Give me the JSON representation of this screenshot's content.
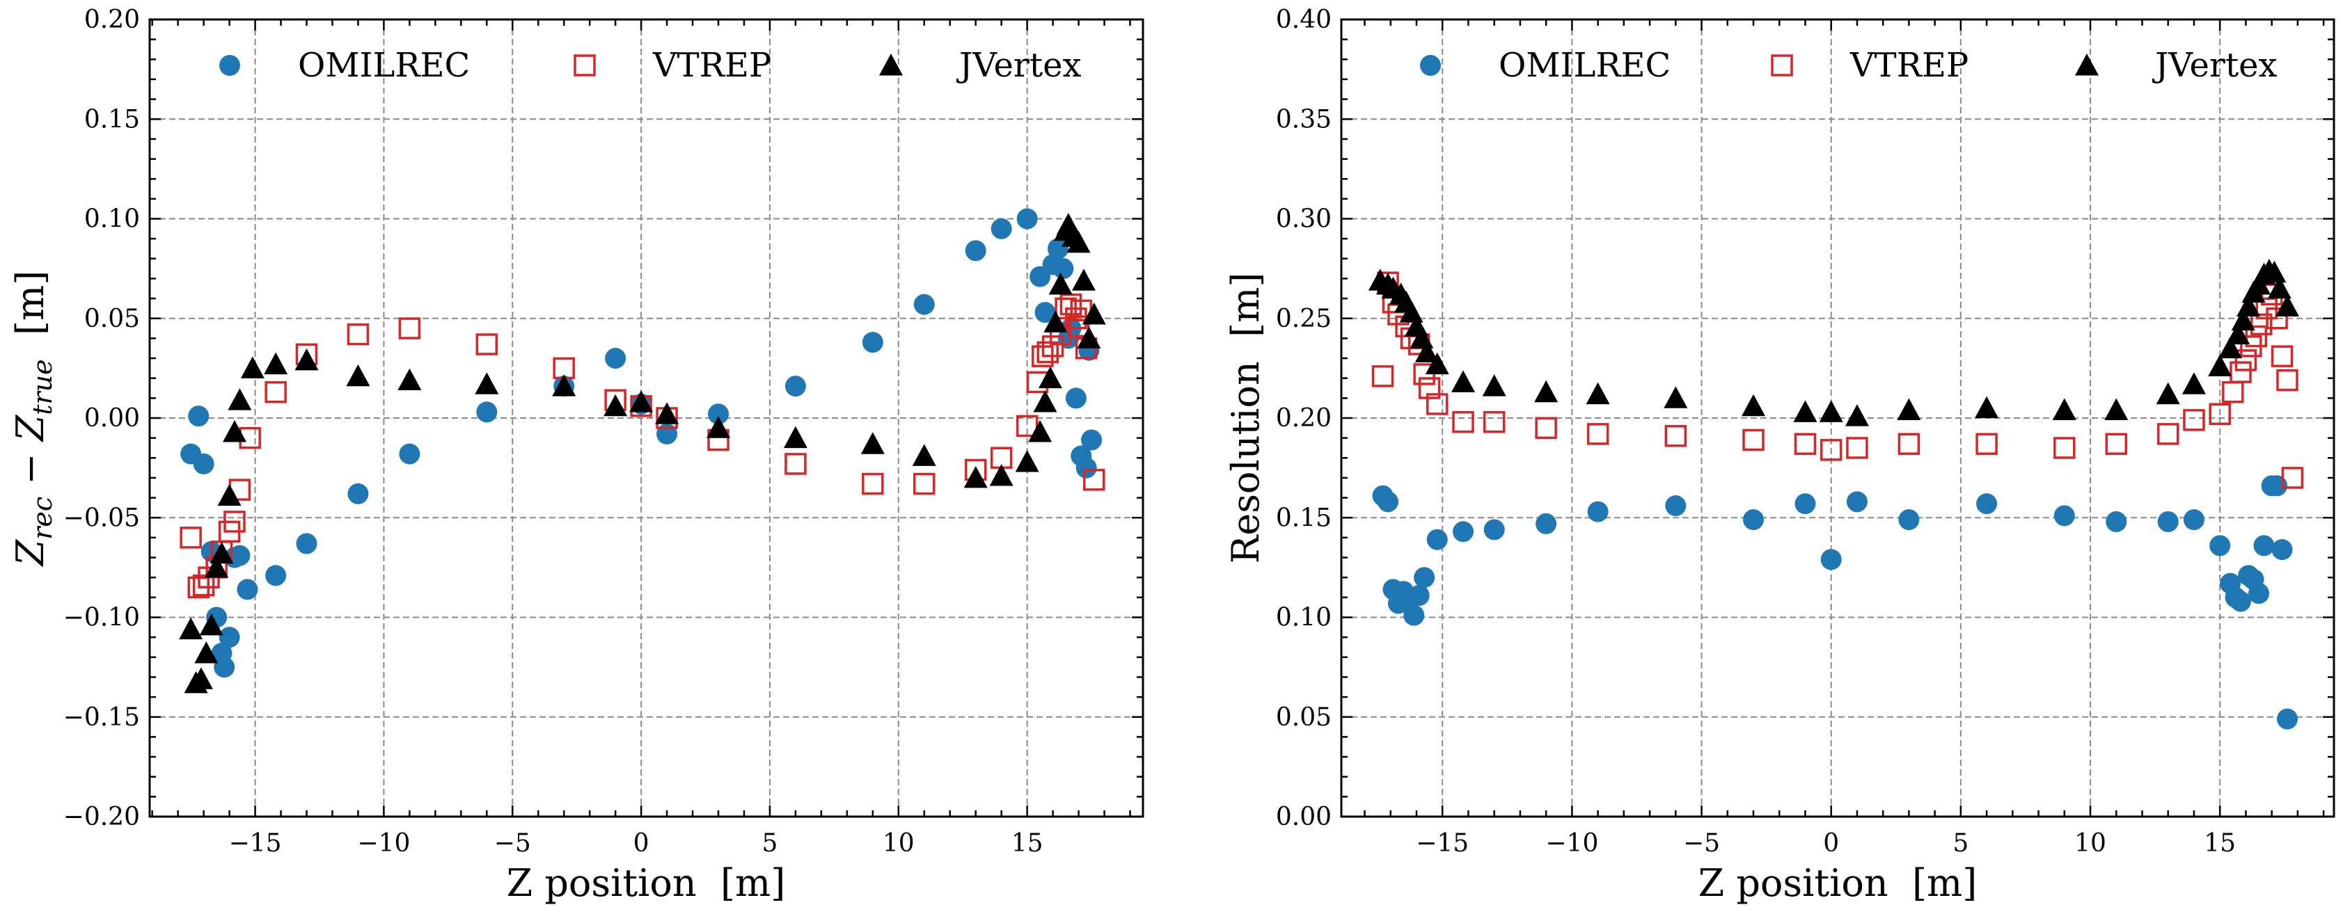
{
  "colors": {
    "omilrec": "#1f77b4",
    "vtrep": "#d62728",
    "jvertex": "#000000",
    "grid": "#8a8a8a"
  },
  "chart_data": [
    {
      "type": "scatter",
      "title": "",
      "xlabel": "Z position  [m]",
      "ylabel": "Z_rec − Z_true  [m]",
      "ylabel_parts": {
        "base1": "Z",
        "sub1": "rec",
        "op": " − ",
        "base2": "Z",
        "sub2": "true",
        "unit": "  [m]"
      },
      "xlim": [
        -19.1,
        19.5
      ],
      "ylim": [
        -0.2,
        0.2
      ],
      "xticks": [
        -15,
        -10,
        -5,
        0,
        5,
        10,
        15
      ],
      "xtick_labels": [
        "−15",
        "−10",
        "−5",
        "0",
        "5",
        "10",
        "15"
      ],
      "yticks": [
        -0.2,
        -0.15,
        -0.1,
        -0.05,
        0.0,
        0.05,
        0.1,
        0.15,
        0.2
      ],
      "ytick_labels": [
        "−0.20",
        "−0.15",
        "−0.10",
        "−0.05",
        "0.00",
        "0.05",
        "0.10",
        "0.15",
        "0.20"
      ],
      "grid": true,
      "legend": {
        "placement": "top",
        "entries": [
          "OMILREC",
          "VTREP",
          "JVertex"
        ]
      },
      "series": [
        {
          "name": "OMILREC",
          "marker": "circle",
          "points": [
            [
              -17.5,
              -0.018
            ],
            [
              -17.2,
              0.001
            ],
            [
              -17.0,
              -0.023
            ],
            [
              -16.7,
              -0.067
            ],
            [
              -16.5,
              -0.1
            ],
            [
              -16.3,
              -0.118
            ],
            [
              -16.2,
              -0.125
            ],
            [
              -16.0,
              -0.11
            ],
            [
              -15.8,
              -0.07
            ],
            [
              -15.6,
              -0.069
            ],
            [
              -15.3,
              -0.086
            ],
            [
              -14.2,
              -0.079
            ],
            [
              -13.0,
              -0.063
            ],
            [
              -11.0,
              -0.038
            ],
            [
              -9.0,
              -0.018
            ],
            [
              -6.0,
              0.003
            ],
            [
              -3.0,
              0.016
            ],
            [
              -1.0,
              0.03
            ],
            [
              0.0,
              0.007
            ],
            [
              1.0,
              -0.008
            ],
            [
              3.0,
              0.002
            ],
            [
              6.0,
              0.016
            ],
            [
              9.0,
              0.038
            ],
            [
              11.0,
              0.057
            ],
            [
              13.0,
              0.084
            ],
            [
              14.0,
              0.095
            ],
            [
              15.0,
              0.1
            ],
            [
              15.5,
              0.071
            ],
            [
              15.7,
              0.053
            ],
            [
              16.0,
              0.077
            ],
            [
              16.2,
              0.085
            ],
            [
              16.4,
              0.075
            ],
            [
              16.6,
              0.04
            ],
            [
              16.7,
              0.045
            ],
            [
              16.9,
              0.01
            ],
            [
              17.1,
              -0.019
            ],
            [
              17.3,
              -0.025
            ],
            [
              17.4,
              0.034
            ],
            [
              17.5,
              -0.011
            ]
          ]
        },
        {
          "name": "VTREP",
          "marker": "square-open",
          "points": [
            [
              -17.5,
              -0.06
            ],
            [
              -17.2,
              -0.085
            ],
            [
              -17.0,
              -0.084
            ],
            [
              -16.8,
              -0.08
            ],
            [
              -16.5,
              -0.075
            ],
            [
              -16.3,
              -0.067
            ],
            [
              -16.0,
              -0.057
            ],
            [
              -15.8,
              -0.052
            ],
            [
              -15.6,
              -0.036
            ],
            [
              -15.2,
              -0.01
            ],
            [
              -14.2,
              0.013
            ],
            [
              -13.0,
              0.032
            ],
            [
              -11.0,
              0.042
            ],
            [
              -9.0,
              0.045
            ],
            [
              -6.0,
              0.037
            ],
            [
              -3.0,
              0.025
            ],
            [
              -1.0,
              0.009
            ],
            [
              0.0,
              0.006
            ],
            [
              1.0,
              0.0
            ],
            [
              3.0,
              -0.011
            ],
            [
              6.0,
              -0.023
            ],
            [
              9.0,
              -0.033
            ],
            [
              11.0,
              -0.033
            ],
            [
              13.0,
              -0.026
            ],
            [
              14.0,
              -0.02
            ],
            [
              15.0,
              -0.004
            ],
            [
              15.4,
              0.018
            ],
            [
              15.6,
              0.031
            ],
            [
              15.8,
              0.033
            ],
            [
              16.0,
              0.036
            ],
            [
              16.3,
              0.042
            ],
            [
              16.5,
              0.055
            ],
            [
              16.7,
              0.057
            ],
            [
              16.9,
              0.05
            ],
            [
              17.0,
              0.046
            ],
            [
              17.1,
              0.054
            ],
            [
              17.3,
              0.035
            ],
            [
              17.6,
              -0.031
            ]
          ]
        },
        {
          "name": "JVertex",
          "marker": "triangle",
          "points": [
            [
              -17.5,
              -0.106
            ],
            [
              -17.3,
              -0.133
            ],
            [
              -17.1,
              -0.131
            ],
            [
              -16.9,
              -0.118
            ],
            [
              -16.7,
              -0.104
            ],
            [
              -16.5,
              -0.075
            ],
            [
              -16.3,
              -0.068
            ],
            [
              -16.0,
              -0.039
            ],
            [
              -15.8,
              -0.007
            ],
            [
              -15.6,
              0.009
            ],
            [
              -15.1,
              0.025
            ],
            [
              -14.2,
              0.027
            ],
            [
              -13.0,
              0.029
            ],
            [
              -11.0,
              0.021
            ],
            [
              -9.0,
              0.019
            ],
            [
              -6.0,
              0.017
            ],
            [
              -3.0,
              0.016
            ],
            [
              -1.0,
              0.006
            ],
            [
              0.0,
              0.008
            ],
            [
              1.0,
              0.002
            ],
            [
              3.0,
              -0.005
            ],
            [
              6.0,
              -0.01
            ],
            [
              9.0,
              -0.013
            ],
            [
              11.0,
              -0.019
            ],
            [
              13.0,
              -0.03
            ],
            [
              14.0,
              -0.029
            ],
            [
              15.0,
              -0.022
            ],
            [
              15.5,
              -0.007
            ],
            [
              15.7,
              0.008
            ],
            [
              15.9,
              0.02
            ],
            [
              16.1,
              0.048
            ],
            [
              16.3,
              0.067
            ],
            [
              16.5,
              0.094
            ],
            [
              16.6,
              0.097
            ],
            [
              16.8,
              0.091
            ],
            [
              17.0,
              0.088
            ],
            [
              17.2,
              0.069
            ],
            [
              17.4,
              0.04
            ],
            [
              17.6,
              0.052
            ]
          ]
        }
      ]
    },
    {
      "type": "scatter",
      "title": "",
      "xlabel": "Z position  [m]",
      "ylabel": "Resolution  [m]",
      "xlim": [
        -18.9,
        19.4
      ],
      "ylim": [
        0.0,
        0.4
      ],
      "xticks": [
        -15,
        -10,
        -5,
        0,
        5,
        10,
        15
      ],
      "xtick_labels": [
        "−15",
        "−10",
        "−5",
        "0",
        "5",
        "10",
        "15"
      ],
      "yticks": [
        0.0,
        0.05,
        0.1,
        0.15,
        0.2,
        0.25,
        0.3,
        0.35,
        0.4
      ],
      "ytick_labels": [
        "0.00",
        "0.05",
        "0.10",
        "0.15",
        "0.20",
        "0.25",
        "0.30",
        "0.35",
        "0.40"
      ],
      "grid": true,
      "legend": {
        "placement": "top",
        "entries": [
          "OMILREC",
          "VTREP",
          "JVertex"
        ]
      },
      "series": [
        {
          "name": "OMILREC",
          "marker": "circle",
          "points": [
            [
              -17.3,
              0.161
            ],
            [
              -17.1,
              0.158
            ],
            [
              -16.9,
              0.114
            ],
            [
              -16.7,
              0.107
            ],
            [
              -16.5,
              0.113
            ],
            [
              -16.3,
              0.109
            ],
            [
              -16.1,
              0.101
            ],
            [
              -15.9,
              0.111
            ],
            [
              -15.7,
              0.12
            ],
            [
              -15.2,
              0.139
            ],
            [
              -14.2,
              0.143
            ],
            [
              -13.0,
              0.144
            ],
            [
              -11.0,
              0.147
            ],
            [
              -9.0,
              0.153
            ],
            [
              -6.0,
              0.156
            ],
            [
              -3.0,
              0.149
            ],
            [
              -1.0,
              0.157
            ],
            [
              0.0,
              0.129
            ],
            [
              1.0,
              0.158
            ],
            [
              3.0,
              0.149
            ],
            [
              6.0,
              0.157
            ],
            [
              9.0,
              0.151
            ],
            [
              11.0,
              0.148
            ],
            [
              13.0,
              0.148
            ],
            [
              14.0,
              0.149
            ],
            [
              15.0,
              0.136
            ],
            [
              15.4,
              0.117
            ],
            [
              15.6,
              0.11
            ],
            [
              15.8,
              0.108
            ],
            [
              16.1,
              0.121
            ],
            [
              16.3,
              0.119
            ],
            [
              16.5,
              0.112
            ],
            [
              16.7,
              0.136
            ],
            [
              17.0,
              0.166
            ],
            [
              17.2,
              0.166
            ],
            [
              17.4,
              0.134
            ],
            [
              17.6,
              0.049
            ]
          ]
        },
        {
          "name": "VTREP",
          "marker": "square-open",
          "points": [
            [
              -17.3,
              0.221
            ],
            [
              -17.1,
              0.268
            ],
            [
              -16.9,
              0.258
            ],
            [
              -16.7,
              0.252
            ],
            [
              -16.4,
              0.246
            ],
            [
              -16.2,
              0.24
            ],
            [
              -15.9,
              0.237
            ],
            [
              -15.7,
              0.222
            ],
            [
              -15.5,
              0.215
            ],
            [
              -15.2,
              0.207
            ],
            [
              -14.2,
              0.198
            ],
            [
              -13.0,
              0.198
            ],
            [
              -11.0,
              0.195
            ],
            [
              -9.0,
              0.192
            ],
            [
              -6.0,
              0.191
            ],
            [
              -3.0,
              0.189
            ],
            [
              -1.0,
              0.187
            ],
            [
              0.0,
              0.184
            ],
            [
              1.0,
              0.185
            ],
            [
              3.0,
              0.187
            ],
            [
              6.0,
              0.187
            ],
            [
              9.0,
              0.185
            ],
            [
              11.0,
              0.187
            ],
            [
              13.0,
              0.192
            ],
            [
              14.0,
              0.199
            ],
            [
              15.0,
              0.202
            ],
            [
              15.5,
              0.213
            ],
            [
              15.8,
              0.223
            ],
            [
              16.0,
              0.229
            ],
            [
              16.2,
              0.236
            ],
            [
              16.4,
              0.241
            ],
            [
              16.6,
              0.247
            ],
            [
              16.8,
              0.255
            ],
            [
              17.0,
              0.262
            ],
            [
              17.2,
              0.25
            ],
            [
              17.4,
              0.231
            ],
            [
              17.6,
              0.219
            ],
            [
              17.8,
              0.17
            ]
          ]
        },
        {
          "name": "JVertex",
          "marker": "triangle",
          "points": [
            [
              -17.4,
              0.269
            ],
            [
              -17.1,
              0.267
            ],
            [
              -16.9,
              0.265
            ],
            [
              -16.6,
              0.262
            ],
            [
              -16.4,
              0.258
            ],
            [
              -16.2,
              0.253
            ],
            [
              -16.0,
              0.246
            ],
            [
              -15.8,
              0.24
            ],
            [
              -15.6,
              0.233
            ],
            [
              -15.2,
              0.227
            ],
            [
              -14.2,
              0.218
            ],
            [
              -13.0,
              0.216
            ],
            [
              -11.0,
              0.213
            ],
            [
              -9.0,
              0.212
            ],
            [
              -6.0,
              0.21
            ],
            [
              -3.0,
              0.206
            ],
            [
              -1.0,
              0.203
            ],
            [
              0.0,
              0.203
            ],
            [
              1.0,
              0.201
            ],
            [
              3.0,
              0.204
            ],
            [
              6.0,
              0.205
            ],
            [
              9.0,
              0.204
            ],
            [
              11.0,
              0.204
            ],
            [
              13.0,
              0.212
            ],
            [
              14.0,
              0.217
            ],
            [
              15.0,
              0.226
            ],
            [
              15.4,
              0.235
            ],
            [
              15.7,
              0.242
            ],
            [
              15.9,
              0.249
            ],
            [
              16.1,
              0.256
            ],
            [
              16.3,
              0.263
            ],
            [
              16.5,
              0.267
            ],
            [
              16.7,
              0.272
            ],
            [
              16.9,
              0.274
            ],
            [
              17.1,
              0.273
            ],
            [
              17.3,
              0.265
            ],
            [
              17.6,
              0.256
            ]
          ]
        }
      ]
    }
  ]
}
